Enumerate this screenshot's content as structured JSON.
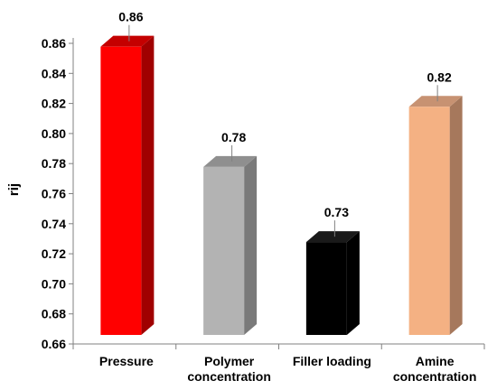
{
  "chart_data": {
    "type": "bar",
    "style": "3d",
    "title": "",
    "xlabel": "",
    "ylabel": "rij",
    "ylim": [
      0.66,
      0.86
    ],
    "y_ticks": [
      "0.66",
      "0.68",
      "0.70",
      "0.72",
      "0.74",
      "0.76",
      "0.78",
      "0.80",
      "0.82",
      "0.84",
      "0.86"
    ],
    "grid": false,
    "legend": "none",
    "categories": [
      [
        "Pressure"
      ],
      [
        "Polymer",
        "concentration"
      ],
      [
        "Filler loading"
      ],
      [
        "Amine",
        "concentration"
      ]
    ],
    "values": [
      0.865,
      0.785,
      0.735,
      0.825
    ],
    "data_labels": [
      "0.86",
      "0.78",
      "0.73",
      "0.82"
    ],
    "colors": {
      "front": [
        "#ff0000",
        "#b3b3b3",
        "#000000",
        "#f4b183"
      ],
      "side": [
        "#a00000",
        "#7a7a7a",
        "#000000",
        "#a6785c"
      ],
      "top": [
        "#c40000",
        "#8f8f8f",
        "#1a1a1a",
        "#c79272"
      ]
    }
  }
}
